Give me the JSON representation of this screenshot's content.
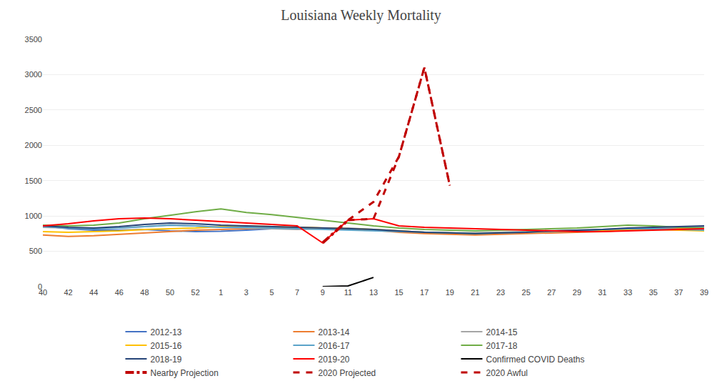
{
  "chart_data": {
    "type": "line",
    "title": "Louisiana Weekly Mortality",
    "categories": [
      "40",
      "42",
      "44",
      "46",
      "48",
      "50",
      "52",
      "1",
      "3",
      "5",
      "7",
      "9",
      "11",
      "13",
      "15",
      "17",
      "19",
      "21",
      "23",
      "25",
      "27",
      "29",
      "31",
      "33",
      "35",
      "37",
      "39"
    ],
    "ylim": [
      0,
      3500
    ],
    "yticks": [
      0,
      500,
      1000,
      1500,
      2000,
      2500,
      3000,
      3500
    ],
    "grid": true,
    "legend": "bottom",
    "series": [
      {
        "name": "2012-13",
        "color": "#4472C4",
        "line_style": "solid",
        "values": [
          860,
          820,
          800,
          800,
          810,
          790,
          780,
          785,
          800,
          820,
          830,
          820,
          810,
          800,
          780,
          770,
          760,
          750,
          760,
          770,
          780,
          790,
          800,
          810,
          820,
          830,
          840
        ]
      },
      {
        "name": "2013-14",
        "color": "#ED7D31",
        "line_style": "solid",
        "values": [
          730,
          710,
          720,
          740,
          760,
          780,
          800,
          810,
          820,
          830,
          840,
          830,
          820,
          800,
          770,
          750,
          740,
          730,
          740,
          750,
          760,
          770,
          780,
          800,
          810,
          820,
          830
        ]
      },
      {
        "name": "2014-15",
        "color": "#A5A5A5",
        "line_style": "solid",
        "values": [
          840,
          830,
          820,
          830,
          850,
          870,
          860,
          840,
          830,
          820,
          810,
          820,
          830,
          810,
          790,
          770,
          760,
          760,
          770,
          780,
          790,
          800,
          810,
          820,
          830,
          840,
          850
        ]
      },
      {
        "name": "2015-16",
        "color": "#FFC000",
        "line_style": "solid",
        "values": [
          780,
          770,
          780,
          790,
          810,
          820,
          830,
          850,
          860,
          850,
          840,
          830,
          820,
          810,
          790,
          770,
          760,
          750,
          760,
          770,
          780,
          790,
          800,
          810,
          810,
          800,
          790
        ]
      },
      {
        "name": "2016-17",
        "color": "#5BA3C9",
        "line_style": "solid",
        "values": [
          850,
          830,
          820,
          830,
          850,
          870,
          860,
          840,
          840,
          830,
          820,
          810,
          800,
          790,
          780,
          770,
          760,
          750,
          760,
          770,
          780,
          790,
          810,
          820,
          820,
          810,
          800
        ]
      },
      {
        "name": "2017-18",
        "color": "#70AD47",
        "line_style": "solid",
        "values": [
          870,
          860,
          870,
          900,
          960,
          1010,
          1060,
          1100,
          1050,
          1020,
          980,
          940,
          900,
          860,
          830,
          810,
          800,
          790,
          800,
          810,
          820,
          830,
          850,
          870,
          860,
          840,
          830
        ]
      },
      {
        "name": "2018-19",
        "color": "#264478",
        "line_style": "solid",
        "values": [
          860,
          840,
          830,
          850,
          880,
          900,
          890,
          870,
          860,
          850,
          840,
          830,
          820,
          810,
          790,
          770,
          760,
          750,
          760,
          770,
          790,
          800,
          810,
          830,
          840,
          850,
          860
        ]
      },
      {
        "name": "2019-20",
        "color": "#FF0000",
        "line_style": "solid",
        "values": [
          860,
          890,
          930,
          960,
          970,
          960,
          940,
          920,
          900,
          880,
          860,
          620,
          940,
          960,
          860,
          840,
          830,
          820,
          810,
          800,
          790,
          780,
          780,
          790,
          800,
          810,
          820
        ]
      },
      {
        "name": "Confirmed COVID Deaths",
        "color": "#000000",
        "line_style": "solid",
        "values": [
          null,
          null,
          null,
          null,
          null,
          null,
          null,
          null,
          null,
          null,
          null,
          0,
          10,
          130,
          null,
          null,
          null,
          null,
          null,
          null,
          null,
          null,
          null,
          null,
          null,
          null,
          null
        ]
      },
      {
        "name": "Nearby Projection",
        "color": "#C00000",
        "line_style": "dashdot",
        "values": [
          null,
          null,
          null,
          null,
          null,
          null,
          null,
          null,
          null,
          null,
          null,
          620,
          940,
          null,
          null,
          null,
          null,
          null,
          null,
          null,
          null,
          null,
          null,
          null,
          null,
          null,
          null
        ]
      },
      {
        "name": "2020 Projected",
        "color": "#C00000",
        "line_style": "dashed",
        "values": [
          null,
          null,
          null,
          null,
          null,
          null,
          null,
          null,
          null,
          null,
          null,
          null,
          940,
          960,
          1840,
          3100,
          1430,
          null,
          null,
          null,
          null,
          null,
          null,
          null,
          null,
          null,
          null
        ]
      },
      {
        "name": "2020 Awful",
        "color": "#C00000",
        "line_style": "dashed",
        "values": [
          null,
          null,
          null,
          null,
          null,
          null,
          null,
          null,
          null,
          null,
          null,
          null,
          940,
          1200,
          1840,
          3100,
          1430,
          null,
          null,
          null,
          null,
          null,
          null,
          null,
          null,
          null,
          null
        ]
      }
    ]
  }
}
